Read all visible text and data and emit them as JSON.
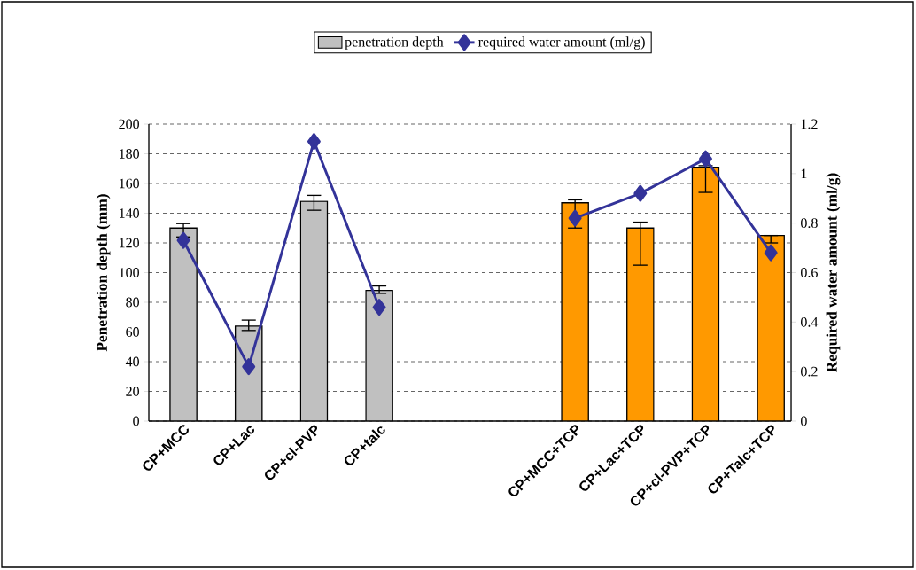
{
  "chart_data": {
    "type": "bar",
    "categories": [
      "CP+MCC",
      "CP+Lac",
      "CP+cl-PVP",
      "CP+talc",
      null,
      null,
      "CP+MCC+TCP",
      "CP+Lac+TCP",
      "CP+cl-PVP+TCP",
      "CP+Talc+TCP"
    ],
    "ylabel": "Penetration depth (mm)",
    "y2label": "Required water amount (ml/g)",
    "ylim": [
      0,
      200
    ],
    "yticks": [
      0,
      20,
      40,
      60,
      80,
      100,
      120,
      140,
      160,
      180,
      200
    ],
    "y2lim": [
      0,
      1.2
    ],
    "y2ticks": [
      0,
      0.2,
      0.4,
      0.6,
      0.8,
      1,
      1.2
    ],
    "grid": "y",
    "legend": "top",
    "series": [
      {
        "name": "penetration depth",
        "color": "#c0c0c0",
        "colors": [
          "#c0c0c0",
          "#c0c0c0",
          "#c0c0c0",
          "#c0c0c0",
          null,
          null,
          "#ff9900",
          "#ff9900",
          "#ff9900",
          "#ff9900"
        ],
        "values": [
          130,
          64,
          148,
          88,
          null,
          null,
          147,
          130,
          171,
          125
        ],
        "errors": [
          [
            124,
            133
          ],
          [
            61,
            68
          ],
          [
            142,
            152
          ],
          [
            86,
            91
          ],
          null,
          null,
          [
            130,
            149
          ],
          [
            105,
            134
          ],
          [
            154,
            172
          ],
          [
            120,
            125
          ]
        ]
      },
      {
        "name": "required water amount (ml/g)",
        "type": "line",
        "axis": "y2",
        "color": "#333399",
        "marker": "diamond",
        "values": [
          0.73,
          0.22,
          1.13,
          0.46,
          null,
          null,
          0.82,
          0.92,
          1.06,
          0.68
        ]
      }
    ]
  }
}
